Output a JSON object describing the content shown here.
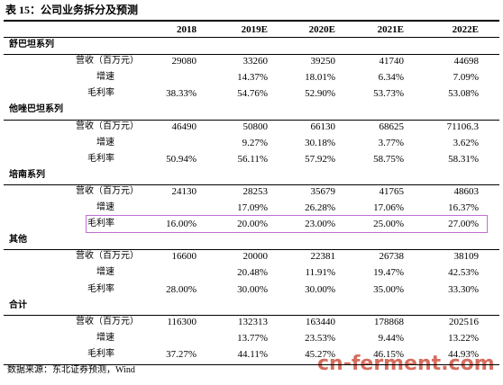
{
  "title": "表 15：公司业务拆分及预测",
  "table": {
    "header": [
      null,
      "2018",
      "2019E",
      "2020E",
      "2021E",
      "2022E"
    ],
    "sections": [
      {
        "name": "舒巴坦系列",
        "rows": [
          {
            "label": "营收（百万元）",
            "cells": [
              "29080",
              "33260",
              "39250",
              "41740",
              "44698"
            ]
          },
          {
            "label": "增速",
            "cells": [
              null,
              "14.37%",
              "18.01%",
              "6.34%",
              "7.09%"
            ]
          },
          {
            "label": "毛利率",
            "cells": [
              "38.33%",
              "54.76%",
              "52.90%",
              "53.73%",
              "53.08%"
            ]
          }
        ]
      },
      {
        "name": "他唑巴坦系列",
        "rows": [
          {
            "label": "营收（百万元）",
            "cells": [
              "46490",
              "50800",
              "66130",
              "68625",
              "71106.3"
            ]
          },
          {
            "label": "增速",
            "cells": [
              null,
              "9.27%",
              "30.18%",
              "3.77%",
              "3.62%"
            ]
          },
          {
            "label": "毛利率",
            "cells": [
              "50.94%",
              "56.11%",
              "57.92%",
              "58.75%",
              "58.31%"
            ]
          }
        ]
      },
      {
        "name": "培南系列",
        "rows": [
          {
            "label": "营收（百万元）",
            "cells": [
              "24130",
              "28253",
              "35679",
              "41765",
              "48603"
            ]
          },
          {
            "label": "增速",
            "cells": [
              null,
              "17.09%",
              "26.28%",
              "17.06%",
              "16.37%"
            ]
          },
          {
            "label": "毛利率",
            "cells": [
              "16.00%",
              "20.00%",
              "23.00%",
              "25.00%",
              "27.00%"
            ]
          }
        ]
      },
      {
        "name": "其他",
        "rows": [
          {
            "label": "营收（百万元）",
            "cells": [
              "16600",
              "20000",
              "22381",
              "26738",
              "38109"
            ]
          },
          {
            "label": "增速",
            "cells": [
              null,
              "20.48%",
              "11.91%",
              "19.47%",
              "42.53%"
            ]
          },
          {
            "label": "毛利率",
            "cells": [
              "28.00%",
              "30.00%",
              "30.00%",
              "35.00%",
              "33.30%"
            ]
          }
        ]
      },
      {
        "name": "合计",
        "rows": [
          {
            "label": "营收（百万元）",
            "cells": [
              "116300",
              "132313",
              "163440",
              "178868",
              "202516"
            ]
          },
          {
            "label": "增速",
            "cells": [
              null,
              "13.77%",
              "23.53%",
              "9.44%",
              "13.22%"
            ]
          },
          {
            "label": "毛利率",
            "cells": [
              "37.27%",
              "44.11%",
              "45.27%",
              "46.15%",
              "44.93%"
            ]
          }
        ]
      }
    ]
  },
  "source": "数据来源：东北证券预测，Wind",
  "watermark": "cn-ferment.com"
}
